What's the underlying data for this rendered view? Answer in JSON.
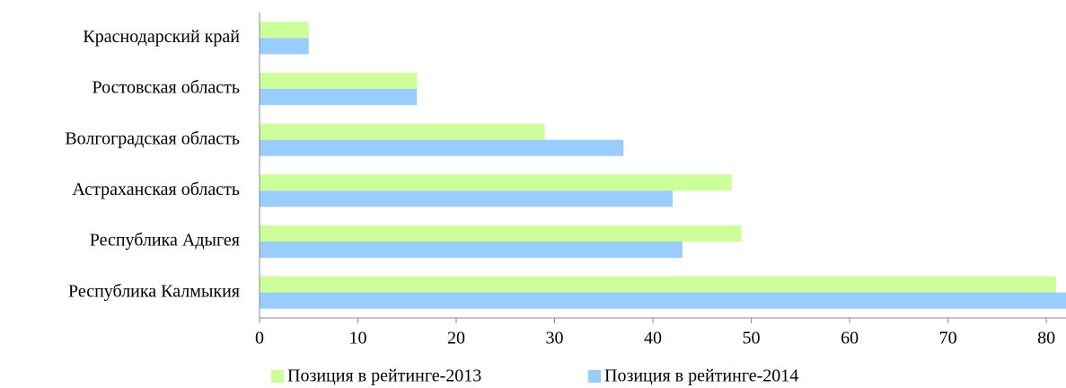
{
  "chart_data": {
    "type": "bar",
    "orientation": "horizontal",
    "categories": [
      "Краснодарский край",
      "Ростовская область",
      "Волгоградская область",
      "Астраханская область",
      "Республика Адыгея",
      "Республика Калмыкия"
    ],
    "series": [
      {
        "name": "Позиция в рейтинге-2013",
        "color": "#ccff99",
        "values": [
          5,
          16,
          29,
          48,
          49,
          81
        ]
      },
      {
        "name": "Позиция в рейтинге-2014",
        "color": "#99ccff",
        "values": [
          5,
          16,
          37,
          42,
          43,
          82
        ]
      }
    ],
    "xlim": [
      0,
      82
    ],
    "xticks": [
      0,
      10,
      20,
      30,
      40,
      50,
      60,
      70,
      80
    ],
    "grid": false,
    "legend": "bottom"
  }
}
